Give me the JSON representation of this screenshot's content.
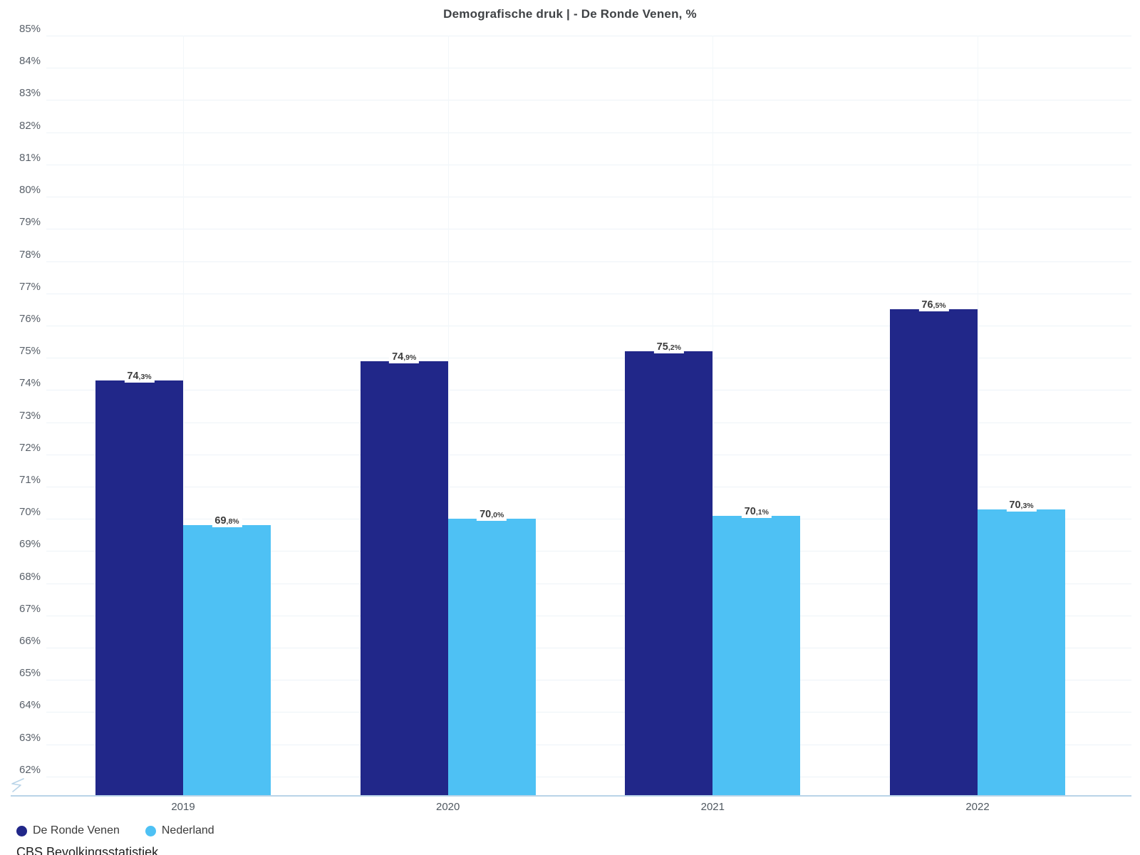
{
  "title": "Demografische druk | - De Ronde Venen, %",
  "source": "CBS Bevolkingsstatistiek",
  "colors": {
    "series1": "#212789",
    "series2": "#4EC1F4",
    "axis_line": "#b9d4e8",
    "gridline": "#edf3f8",
    "tick_text": "#596069",
    "value_label_text": "#3d3d3d"
  },
  "chart_data": {
    "type": "bar",
    "title": "Demografische druk | - De Ronde Venen, %",
    "categories": [
      "2019",
      "2020",
      "2021",
      "2022"
    ],
    "series": [
      {
        "name": "De Ronde Venen",
        "color": "#212789",
        "values": [
          74.3,
          74.9,
          75.2,
          76.5
        ]
      },
      {
        "name": "Nederland",
        "color": "#4EC1F4",
        "values": [
          69.8,
          70.0,
          70.1,
          70.3
        ]
      }
    ],
    "ylabel": "",
    "xlabel": "",
    "ylim": [
      61.4,
      85
    ],
    "yticks": [
      62,
      63,
      64,
      65,
      66,
      67,
      68,
      69,
      70,
      71,
      72,
      73,
      74,
      75,
      76,
      77,
      78,
      79,
      80,
      81,
      82,
      83,
      84,
      85
    ],
    "ytick_suffix": "%",
    "grid": true,
    "axis_break_at_bottom": true,
    "value_labels": "decimal-comma, one decimal, % suffix",
    "legend_position": "bottom-left",
    "source": "CBS Bevolkingsstatistiek"
  }
}
